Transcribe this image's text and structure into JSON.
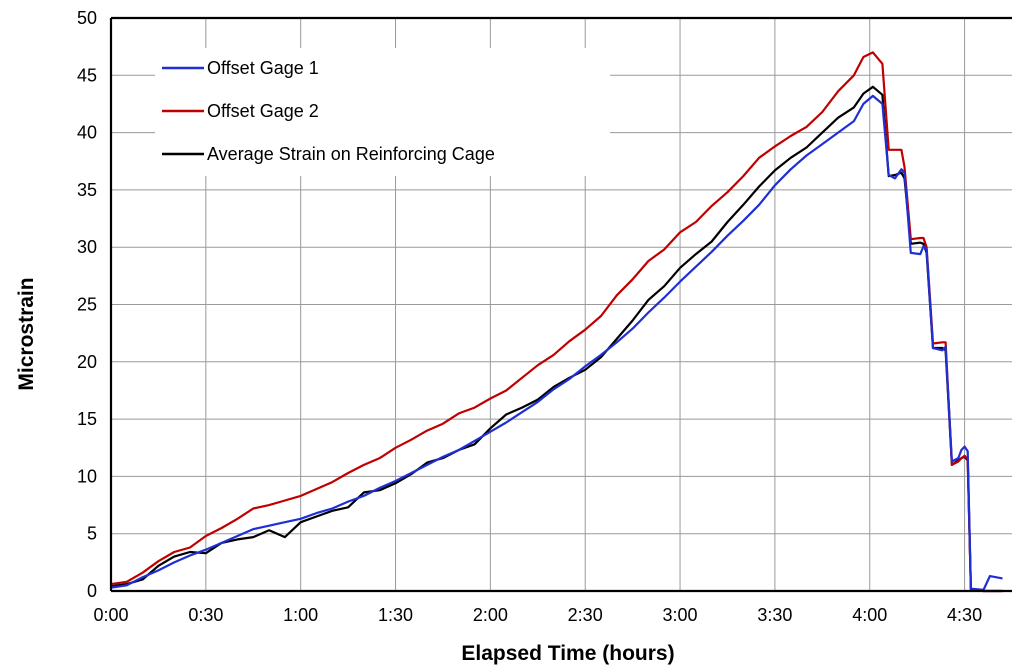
{
  "chart_data": {
    "type": "line",
    "xlabel": "Elapsed Time (hours)",
    "ylabel": "Microstrain",
    "x_unit": "minutes",
    "xlim": [
      0,
      285
    ],
    "ylim": [
      0,
      50
    ],
    "x_ticks": [
      {
        "value": 0,
        "label": "0:00"
      },
      {
        "value": 30,
        "label": "0:30"
      },
      {
        "value": 60,
        "label": "1:00"
      },
      {
        "value": 90,
        "label": "1:30"
      },
      {
        "value": 120,
        "label": "2:00"
      },
      {
        "value": 150,
        "label": "2:30"
      },
      {
        "value": 180,
        "label": "3:00"
      },
      {
        "value": 210,
        "label": "3:30"
      },
      {
        "value": 240,
        "label": "4:00"
      },
      {
        "value": 270,
        "label": "4:30"
      }
    ],
    "y_ticks": [
      0,
      5,
      10,
      15,
      20,
      25,
      30,
      35,
      40,
      45,
      50
    ],
    "grid": true,
    "legend_position": "top-left",
    "series": [
      {
        "name": "Offset Gage 1",
        "color": "#1f2fd6",
        "points": [
          [
            0,
            0.3
          ],
          [
            5,
            0.5
          ],
          [
            10,
            1.2
          ],
          [
            15,
            1.8
          ],
          [
            20,
            2.5
          ],
          [
            25,
            3.1
          ],
          [
            30,
            3.6
          ],
          [
            35,
            4.2
          ],
          [
            40,
            4.8
          ],
          [
            45,
            5.4
          ],
          [
            50,
            5.7
          ],
          [
            55,
            6.0
          ],
          [
            60,
            6.3
          ],
          [
            65,
            6.8
          ],
          [
            70,
            7.2
          ],
          [
            75,
            7.8
          ],
          [
            80,
            8.3
          ],
          [
            85,
            9.0
          ],
          [
            90,
            9.6
          ],
          [
            95,
            10.3
          ],
          [
            100,
            11.0
          ],
          [
            105,
            11.7
          ],
          [
            110,
            12.3
          ],
          [
            115,
            13.1
          ],
          [
            120,
            13.9
          ],
          [
            125,
            14.7
          ],
          [
            130,
            15.6
          ],
          [
            135,
            16.5
          ],
          [
            140,
            17.6
          ],
          [
            145,
            18.5
          ],
          [
            150,
            19.6
          ],
          [
            155,
            20.6
          ],
          [
            160,
            21.7
          ],
          [
            165,
            22.9
          ],
          [
            170,
            24.3
          ],
          [
            175,
            25.6
          ],
          [
            180,
            27.0
          ],
          [
            185,
            28.3
          ],
          [
            190,
            29.6
          ],
          [
            195,
            31.0
          ],
          [
            200,
            32.3
          ],
          [
            205,
            33.7
          ],
          [
            210,
            35.4
          ],
          [
            215,
            36.8
          ],
          [
            220,
            38.0
          ],
          [
            225,
            39.0
          ],
          [
            230,
            40.0
          ],
          [
            235,
            41.0
          ],
          [
            238,
            42.5
          ],
          [
            241,
            43.2
          ],
          [
            244,
            42.5
          ],
          [
            246,
            36.3
          ],
          [
            248,
            36.0
          ],
          [
            250,
            36.8
          ],
          [
            251,
            36.5
          ],
          [
            253,
            29.5
          ],
          [
            256,
            29.4
          ],
          [
            257,
            30.1
          ],
          [
            258,
            29.8
          ],
          [
            260,
            21.2
          ],
          [
            263,
            21.0
          ],
          [
            264,
            21.3
          ],
          [
            266,
            11.3
          ],
          [
            268,
            11.6
          ],
          [
            269,
            12.3
          ],
          [
            270,
            12.6
          ],
          [
            271,
            12.2
          ],
          [
            272,
            0.2
          ],
          [
            276,
            0.1
          ],
          [
            278,
            1.3
          ],
          [
            282,
            1.1
          ]
        ]
      },
      {
        "name": "Offset Gage 2",
        "color": "#c00000",
        "points": [
          [
            0,
            0.6
          ],
          [
            5,
            0.8
          ],
          [
            10,
            1.6
          ],
          [
            15,
            2.6
          ],
          [
            20,
            3.4
          ],
          [
            25,
            3.8
          ],
          [
            30,
            4.8
          ],
          [
            35,
            5.5
          ],
          [
            40,
            6.3
          ],
          [
            45,
            7.2
          ],
          [
            50,
            7.5
          ],
          [
            55,
            7.9
          ],
          [
            60,
            8.3
          ],
          [
            65,
            8.9
          ],
          [
            70,
            9.5
          ],
          [
            75,
            10.3
          ],
          [
            80,
            11.0
          ],
          [
            85,
            11.6
          ],
          [
            90,
            12.5
          ],
          [
            95,
            13.2
          ],
          [
            100,
            14.0
          ],
          [
            105,
            14.6
          ],
          [
            110,
            15.5
          ],
          [
            115,
            16.0
          ],
          [
            120,
            16.8
          ],
          [
            125,
            17.5
          ],
          [
            130,
            18.6
          ],
          [
            135,
            19.7
          ],
          [
            140,
            20.6
          ],
          [
            145,
            21.8
          ],
          [
            150,
            22.8
          ],
          [
            155,
            24.0
          ],
          [
            160,
            25.8
          ],
          [
            165,
            27.2
          ],
          [
            170,
            28.8
          ],
          [
            175,
            29.8
          ],
          [
            180,
            31.3
          ],
          [
            185,
            32.2
          ],
          [
            190,
            33.6
          ],
          [
            195,
            34.8
          ],
          [
            200,
            36.2
          ],
          [
            205,
            37.8
          ],
          [
            210,
            38.8
          ],
          [
            215,
            39.7
          ],
          [
            220,
            40.5
          ],
          [
            225,
            41.8
          ],
          [
            230,
            43.6
          ],
          [
            235,
            45.0
          ],
          [
            238,
            46.6
          ],
          [
            241,
            47.0
          ],
          [
            244,
            46.0
          ],
          [
            246,
            38.5
          ],
          [
            248,
            38.5
          ],
          [
            250,
            38.5
          ],
          [
            251,
            37.0
          ],
          [
            253,
            30.7
          ],
          [
            256,
            30.8
          ],
          [
            257,
            30.8
          ],
          [
            258,
            30.0
          ],
          [
            260,
            21.6
          ],
          [
            263,
            21.7
          ],
          [
            264,
            21.7
          ],
          [
            266,
            11.0
          ],
          [
            268,
            11.3
          ],
          [
            269,
            11.6
          ],
          [
            270,
            11.8
          ],
          [
            271,
            11.5
          ],
          [
            272,
            0.1
          ],
          [
            276,
            0.0
          ],
          [
            278,
            0.0
          ],
          [
            282,
            0.0
          ]
        ]
      },
      {
        "name": "Average Strain on Reinforcing Cage",
        "color": "#000000",
        "points": [
          [
            0,
            0.4
          ],
          [
            5,
            0.6
          ],
          [
            10,
            1.0
          ],
          [
            15,
            2.2
          ],
          [
            20,
            3.0
          ],
          [
            25,
            3.4
          ],
          [
            30,
            3.3
          ],
          [
            35,
            4.2
          ],
          [
            40,
            4.5
          ],
          [
            45,
            4.7
          ],
          [
            50,
            5.3
          ],
          [
            55,
            4.7
          ],
          [
            60,
            6.0
          ],
          [
            65,
            6.5
          ],
          [
            70,
            7.0
          ],
          [
            75,
            7.3
          ],
          [
            80,
            8.6
          ],
          [
            85,
            8.8
          ],
          [
            90,
            9.4
          ],
          [
            95,
            10.2
          ],
          [
            100,
            11.2
          ],
          [
            105,
            11.6
          ],
          [
            110,
            12.3
          ],
          [
            115,
            12.8
          ],
          [
            120,
            14.2
          ],
          [
            125,
            15.4
          ],
          [
            130,
            16.0
          ],
          [
            135,
            16.7
          ],
          [
            140,
            17.8
          ],
          [
            145,
            18.6
          ],
          [
            150,
            19.3
          ],
          [
            155,
            20.4
          ],
          [
            160,
            22.0
          ],
          [
            165,
            23.6
          ],
          [
            170,
            25.4
          ],
          [
            175,
            26.6
          ],
          [
            180,
            28.2
          ],
          [
            185,
            29.4
          ],
          [
            190,
            30.5
          ],
          [
            195,
            32.2
          ],
          [
            200,
            33.7
          ],
          [
            205,
            35.3
          ],
          [
            210,
            36.7
          ],
          [
            215,
            37.8
          ],
          [
            220,
            38.7
          ],
          [
            225,
            40.0
          ],
          [
            230,
            41.3
          ],
          [
            235,
            42.2
          ],
          [
            238,
            43.4
          ],
          [
            241,
            44.0
          ],
          [
            244,
            43.3
          ],
          [
            246,
            36.2
          ],
          [
            248,
            36.3
          ],
          [
            250,
            36.5
          ],
          [
            251,
            36.0
          ],
          [
            253,
            30.3
          ],
          [
            256,
            30.4
          ],
          [
            257,
            30.3
          ],
          [
            258,
            29.5
          ],
          [
            260,
            21.2
          ],
          [
            263,
            21.2
          ],
          [
            264,
            21.0
          ],
          [
            266,
            11.0
          ],
          [
            268,
            11.4
          ],
          [
            269,
            11.6
          ],
          [
            270,
            11.7
          ],
          [
            271,
            11.4
          ],
          [
            272,
            0.1
          ],
          [
            276,
            0.0
          ],
          [
            278,
            0.0
          ],
          [
            282,
            0.0
          ]
        ]
      }
    ]
  }
}
